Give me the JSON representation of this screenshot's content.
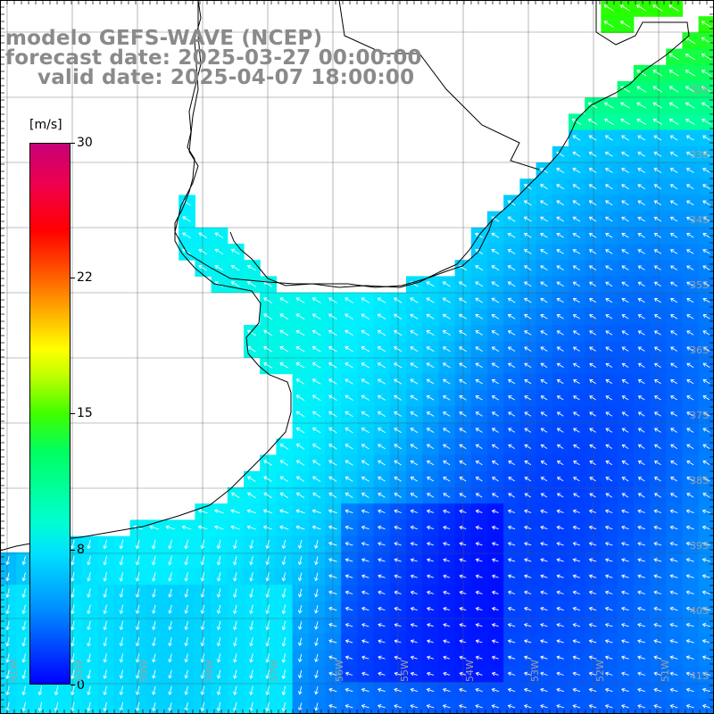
{
  "title": {
    "line1": "modelo GEFS-WAVE (NCEP)",
    "line2": "forecast date: 2025-03-27 00:00:00",
    "line3": "valid date: 2025-04-07 18:00:00"
  },
  "colorbar": {
    "unit": "[m/s]",
    "ticks": [
      "30",
      "22",
      "15",
      "8",
      "0"
    ],
    "range": [
      0,
      30
    ],
    "colors": [
      "#0000ff",
      "#0090ff",
      "#00e0ff",
      "#00ffd0",
      "#00ff60",
      "#40ff00",
      "#ffff00",
      "#ffa000",
      "#ff0000",
      "#c80078"
    ]
  },
  "latitude_labels": [
    "32S",
    "33S",
    "34S",
    "35S",
    "36S",
    "37S",
    "38S",
    "39S",
    "40S",
    "41S"
  ],
  "longitude_labels": [
    "61W",
    "60W",
    "59W",
    "58W",
    "57W",
    "56W",
    "55W",
    "54W",
    "53W",
    "52W",
    "51W"
  ],
  "colors": {
    "land": "#ffffff",
    "coastline": "#000000",
    "grid": "#505050",
    "title": "#8a8a8a",
    "arrows": "#ffffff"
  }
}
